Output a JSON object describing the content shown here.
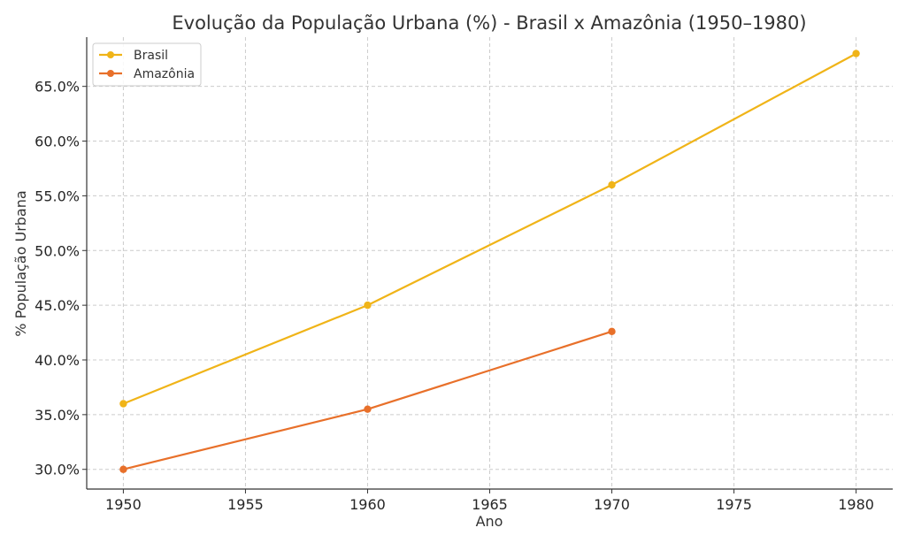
{
  "chart_data": {
    "type": "line",
    "title": "Evolução da População Urbana (%) - Brasil x Amazônia (1950–1980)",
    "xlabel": "Ano",
    "ylabel": "% População Urbana",
    "xlim": [
      1948.5,
      1981.5
    ],
    "ylim": [
      28.2,
      69.5
    ],
    "xticks": [
      1950,
      1955,
      1960,
      1965,
      1970,
      1975,
      1980
    ],
    "xtick_labels": [
      "1950",
      "1955",
      "1960",
      "1965",
      "1970",
      "1975",
      "1980"
    ],
    "yticks": [
      30,
      35,
      40,
      45,
      50,
      55,
      60,
      65
    ],
    "ytick_labels": [
      "30.0%",
      "35.0%",
      "40.0%",
      "45.0%",
      "50.0%",
      "55.0%",
      "60.0%",
      "65.0%"
    ],
    "grid": true,
    "legend_position": "top-left",
    "series": [
      {
        "name": "Brasil",
        "color": "#f0b418",
        "x": [
          1950,
          1960,
          1970,
          1980
        ],
        "y": [
          36.0,
          45.0,
          56.0,
          68.0
        ]
      },
      {
        "name": "Amazônia",
        "color": "#e8702a",
        "x": [
          1950,
          1960,
          1970
        ],
        "y": [
          30.0,
          35.5,
          42.6
        ]
      }
    ]
  }
}
